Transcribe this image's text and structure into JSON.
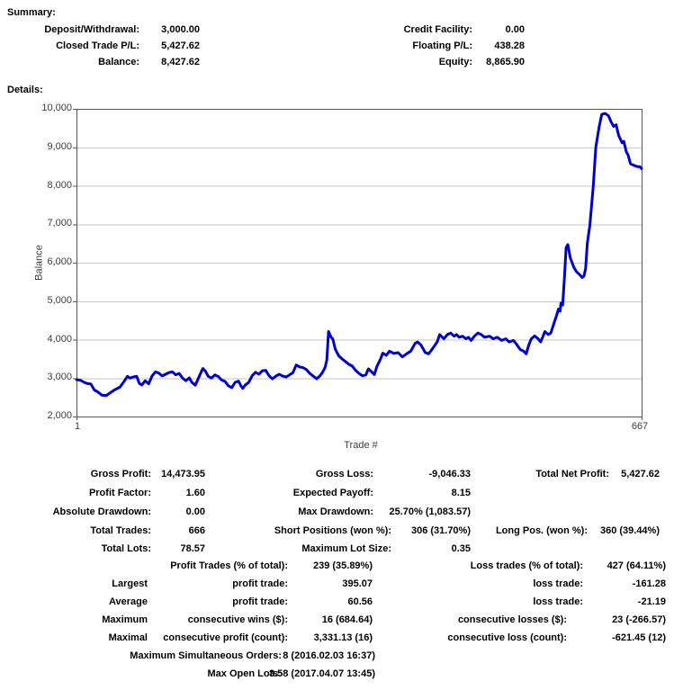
{
  "report": {
    "summary_heading": "Summary:",
    "details_heading": "Details:"
  },
  "summary": {
    "left": [
      {
        "label": "Deposit/Withdrawal:",
        "value": "3,000.00"
      },
      {
        "label": "Closed Trade P/L:",
        "value": "5,427.62"
      },
      {
        "label": "Balance:",
        "value": "8,427.62"
      }
    ],
    "right": [
      {
        "label": "Credit Facility:",
        "value": "0.00"
      },
      {
        "label": "Floating P/L:",
        "value": "438.28"
      },
      {
        "label": "Equity:",
        "value": "8,865.90"
      }
    ]
  },
  "chart_data": {
    "type": "line",
    "title": "",
    "xlabel": "Trade #",
    "ylabel": "Balance",
    "x_ticks": [
      "1",
      "667"
    ],
    "xlim": [
      1,
      667
    ],
    "ylim": [
      2000,
      10000
    ],
    "grid": true,
    "grid_color": "#c6c6c6",
    "axis_color": "#555555",
    "line_color": "#0000cc",
    "y_ticks": [
      {
        "v": 10000,
        "label": "10,000"
      },
      {
        "v": 9000,
        "label": "9,000"
      },
      {
        "v": 8000,
        "label": "8,000"
      },
      {
        "v": 7000,
        "label": "7,000"
      },
      {
        "v": 6000,
        "label": "6,000"
      },
      {
        "v": 5000,
        "label": "5,000"
      },
      {
        "v": 4000,
        "label": "4,000"
      },
      {
        "v": 3000,
        "label": "3,000"
      },
      {
        "v": 2000,
        "label": "2,000"
      }
    ],
    "series": [
      {
        "name": "Balance",
        "points": [
          [
            1,
            2960
          ],
          [
            6,
            2940
          ],
          [
            10,
            2890
          ],
          [
            14,
            2855
          ],
          [
            18,
            2845
          ],
          [
            22,
            2690
          ],
          [
            26,
            2640
          ],
          [
            31,
            2555
          ],
          [
            36,
            2545
          ],
          [
            41,
            2620
          ],
          [
            46,
            2695
          ],
          [
            52,
            2760
          ],
          [
            57,
            2910
          ],
          [
            61,
            3045
          ],
          [
            64,
            3000
          ],
          [
            68,
            3030
          ],
          [
            72,
            3045
          ],
          [
            75,
            2860
          ],
          [
            78,
            2820
          ],
          [
            82,
            2930
          ],
          [
            86,
            2850
          ],
          [
            90,
            3050
          ],
          [
            94,
            3160
          ],
          [
            98,
            3130
          ],
          [
            102,
            3055
          ],
          [
            106,
            3100
          ],
          [
            110,
            3145
          ],
          [
            114,
            3160
          ],
          [
            118,
            3085
          ],
          [
            122,
            3120
          ],
          [
            126,
            3000
          ],
          [
            130,
            2930
          ],
          [
            134,
            3005
          ],
          [
            137,
            2890
          ],
          [
            141,
            2815
          ],
          [
            145,
            3010
          ],
          [
            148,
            3160
          ],
          [
            150,
            3250
          ],
          [
            153,
            3180
          ],
          [
            156,
            3050
          ],
          [
            160,
            3000
          ],
          [
            164,
            3080
          ],
          [
            168,
            3040
          ],
          [
            172,
            2950
          ],
          [
            176,
            2915
          ],
          [
            180,
            2800
          ],
          [
            184,
            2750
          ],
          [
            188,
            2890
          ],
          [
            192,
            2920
          ],
          [
            195,
            2790
          ],
          [
            197,
            2730
          ],
          [
            200,
            2820
          ],
          [
            204,
            2890
          ],
          [
            208,
            3060
          ],
          [
            212,
            3150
          ],
          [
            216,
            3100
          ],
          [
            220,
            3190
          ],
          [
            224,
            3200
          ],
          [
            228,
            3060
          ],
          [
            232,
            2980
          ],
          [
            236,
            3050
          ],
          [
            240,
            3100
          ],
          [
            244,
            3050
          ],
          [
            248,
            3030
          ],
          [
            252,
            3080
          ],
          [
            256,
            3140
          ],
          [
            260,
            3340
          ],
          [
            264,
            3290
          ],
          [
            268,
            3270
          ],
          [
            272,
            3220
          ],
          [
            276,
            3120
          ],
          [
            280,
            3050
          ],
          [
            284,
            2980
          ],
          [
            288,
            3060
          ],
          [
            291,
            3150
          ],
          [
            294,
            3280
          ],
          [
            296,
            3470
          ],
          [
            298,
            4210
          ],
          [
            301,
            4060
          ],
          [
            303,
            4020
          ],
          [
            306,
            3750
          ],
          [
            310,
            3580
          ],
          [
            314,
            3500
          ],
          [
            318,
            3430
          ],
          [
            322,
            3360
          ],
          [
            326,
            3310
          ],
          [
            330,
            3200
          ],
          [
            334,
            3120
          ],
          [
            338,
            3060
          ],
          [
            342,
            3080
          ],
          [
            345,
            3240
          ],
          [
            349,
            3160
          ],
          [
            352,
            3090
          ],
          [
            355,
            3300
          ],
          [
            359,
            3480
          ],
          [
            362,
            3650
          ],
          [
            366,
            3590
          ],
          [
            370,
            3700
          ],
          [
            375,
            3640
          ],
          [
            380,
            3660
          ],
          [
            385,
            3550
          ],
          [
            390,
            3630
          ],
          [
            395,
            3700
          ],
          [
            400,
            3900
          ],
          [
            403,
            3940
          ],
          [
            407,
            3860
          ],
          [
            412,
            3665
          ],
          [
            416,
            3630
          ],
          [
            420,
            3745
          ],
          [
            426,
            3940
          ],
          [
            429,
            4130
          ],
          [
            434,
            4020
          ],
          [
            438,
            4130
          ],
          [
            442,
            4170
          ],
          [
            446,
            4090
          ],
          [
            449,
            4130
          ],
          [
            452,
            4060
          ],
          [
            456,
            4090
          ],
          [
            460,
            4020
          ],
          [
            463,
            4060
          ],
          [
            466,
            3980
          ],
          [
            470,
            4090
          ],
          [
            474,
            4170
          ],
          [
            478,
            4130
          ],
          [
            482,
            4060
          ],
          [
            488,
            4090
          ],
          [
            492,
            4020
          ],
          [
            497,
            4060
          ],
          [
            502,
            3980
          ],
          [
            507,
            4020
          ],
          [
            511,
            3940
          ],
          [
            516,
            3980
          ],
          [
            519,
            3900
          ],
          [
            524,
            3740
          ],
          [
            528,
            3700
          ],
          [
            531,
            3630
          ],
          [
            534,
            3860
          ],
          [
            537,
            4020
          ],
          [
            541,
            4095
          ],
          [
            545,
            4020
          ],
          [
            548,
            3940
          ],
          [
            551,
            4095
          ],
          [
            553,
            4210
          ],
          [
            557,
            4130
          ],
          [
            560,
            4170
          ],
          [
            564,
            4445
          ],
          [
            567,
            4640
          ],
          [
            569,
            4795
          ],
          [
            571,
            4740
          ],
          [
            572,
            4950
          ],
          [
            574,
            4900
          ],
          [
            576,
            5600
          ],
          [
            578,
            6390
          ],
          [
            580,
            6470
          ],
          [
            583,
            6120
          ],
          [
            587,
            5885
          ],
          [
            590,
            5770
          ],
          [
            594,
            5690
          ],
          [
            597,
            5615
          ],
          [
            599,
            5650
          ],
          [
            601,
            5850
          ],
          [
            603,
            6510
          ],
          [
            606,
            6975
          ],
          [
            610,
            7990
          ],
          [
            613,
            9000
          ],
          [
            617,
            9545
          ],
          [
            620,
            9855
          ],
          [
            624,
            9880
          ],
          [
            628,
            9820
          ],
          [
            631,
            9660
          ],
          [
            634,
            9545
          ],
          [
            637,
            9585
          ],
          [
            640,
            9310
          ],
          [
            644,
            9115
          ],
          [
            646,
            9155
          ],
          [
            649,
            8885
          ],
          [
            651,
            8805
          ],
          [
            654,
            8570
          ],
          [
            658,
            8530
          ],
          [
            662,
            8495
          ],
          [
            665,
            8495
          ],
          [
            667,
            8445
          ]
        ]
      }
    ]
  },
  "stats": {
    "rows": [
      {
        "cells": [
          {
            "col": "a",
            "text": "Gross Profit:"
          },
          {
            "col": "av",
            "text": "14,473.95"
          },
          {
            "col": "b1",
            "text": "Gross Loss:"
          },
          {
            "col": "bv",
            "text": "-9,046.33"
          },
          {
            "col": "c1",
            "text": "Total Net Profit:"
          },
          {
            "col": "cv",
            "text": "5,427.62"
          }
        ]
      },
      {
        "cells": [
          {
            "col": "a",
            "text": "Profit Factor:"
          },
          {
            "col": "av",
            "text": "1.60"
          },
          {
            "col": "b1",
            "text": "Expected Payoff:"
          },
          {
            "col": "bv",
            "text": "8.15"
          }
        ]
      },
      {
        "cells": [
          {
            "col": "a",
            "text": "Absolute Drawdown:"
          },
          {
            "col": "av",
            "text": "0.00"
          },
          {
            "col": "b1",
            "text": "Max Drawdown:"
          },
          {
            "col": "bv",
            "text": "25.70% (1,083.57)"
          }
        ]
      },
      {
        "cells": [
          {
            "col": "a",
            "text": "Total Trades:"
          },
          {
            "col": "av",
            "text": "666"
          },
          {
            "col": "b2",
            "text": "Short Positions (won %):"
          },
          {
            "col": "bv",
            "text": "306 (31.70%)"
          },
          {
            "col": "c2",
            "text": "Long Pos. (won %):"
          },
          {
            "col": "cv",
            "text": "360 (39.44%)"
          }
        ]
      },
      {
        "cells": [
          {
            "col": "a",
            "text": "Total Lots:"
          },
          {
            "col": "av",
            "text": "78.57"
          },
          {
            "col": "b2",
            "text": "Maximum Lot Size:"
          },
          {
            "col": "bv",
            "text": "0.35"
          }
        ]
      },
      {
        "cells": [
          {
            "col": "lb",
            "text": "Profit Trades (% of total):"
          },
          {
            "col": "lbv",
            "text": "239 (35.89%)"
          },
          {
            "col": "lc",
            "text": "Loss trades (% of total):"
          },
          {
            "col": "lcv",
            "text": "427 (64.11%)"
          }
        ]
      },
      {
        "cells": [
          {
            "col": "q",
            "text": "Largest"
          },
          {
            "col": "lb",
            "text": "profit trade:"
          },
          {
            "col": "lbv",
            "text": "395.07"
          },
          {
            "col": "lc",
            "text": "loss trade:"
          },
          {
            "col": "lcv",
            "text": "-161.28"
          }
        ]
      },
      {
        "cells": [
          {
            "col": "q",
            "text": "Average"
          },
          {
            "col": "lb",
            "text": "profit trade:"
          },
          {
            "col": "lbv",
            "text": "60.56"
          },
          {
            "col": "lc",
            "text": "loss trade:"
          },
          {
            "col": "lcv",
            "text": "-21.19"
          }
        ]
      },
      {
        "cells": [
          {
            "col": "q",
            "text": "Maximum"
          },
          {
            "col": "lb",
            "text": "consecutive wins ($):"
          },
          {
            "col": "lbv",
            "text": "16 (684.64)"
          },
          {
            "col": "lc2",
            "text": "consecutive losses ($):"
          },
          {
            "col": "lcv",
            "text": "23 (-266.57)"
          }
        ]
      },
      {
        "cells": [
          {
            "col": "q",
            "text": "Maximal"
          },
          {
            "col": "lb",
            "text": "consecutive profit (count):"
          },
          {
            "col": "lbv",
            "text": "3,331.13 (16)"
          },
          {
            "col": "lc2",
            "text": "consecutive loss (count):"
          },
          {
            "col": "lcv",
            "text": "-621.45 (12)"
          }
        ]
      },
      {
        "cells": [
          {
            "col": "ml",
            "text": "Maximum Simultaneous Orders:"
          },
          {
            "col": "mv",
            "text": "8 (2016.02.03 16:37)"
          }
        ]
      },
      {
        "cells": [
          {
            "col": "ml",
            "text": "Max Open Lots:"
          },
          {
            "col": "mv",
            "text": "3.58 (2017.04.07 13:45)"
          }
        ]
      }
    ]
  }
}
